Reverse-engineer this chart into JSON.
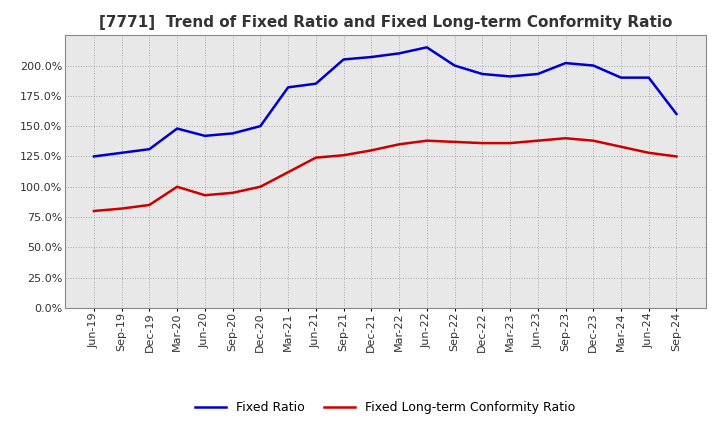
{
  "title": "[7771]  Trend of Fixed Ratio and Fixed Long-term Conformity Ratio",
  "x_labels": [
    "Jun-19",
    "Sep-19",
    "Dec-19",
    "Mar-20",
    "Jun-20",
    "Sep-20",
    "Dec-20",
    "Mar-21",
    "Jun-21",
    "Sep-21",
    "Dec-21",
    "Mar-22",
    "Jun-22",
    "Sep-22",
    "Dec-22",
    "Mar-23",
    "Jun-23",
    "Sep-23",
    "Dec-23",
    "Mar-24",
    "Jun-24",
    "Sep-24"
  ],
  "fixed_ratio": [
    125.0,
    128.0,
    131.0,
    148.0,
    142.0,
    144.0,
    150.0,
    182.0,
    185.0,
    205.0,
    207.0,
    210.0,
    215.0,
    200.0,
    193.0,
    191.0,
    193.0,
    202.0,
    200.0,
    190.0,
    190.0,
    160.0
  ],
  "fixed_lt_ratio": [
    80.0,
    82.0,
    85.0,
    100.0,
    93.0,
    95.0,
    100.0,
    112.0,
    124.0,
    126.0,
    130.0,
    135.0,
    138.0,
    137.0,
    136.0,
    136.0,
    138.0,
    140.0,
    138.0,
    133.0,
    128.0,
    125.0
  ],
  "blue_color": "#0000cc",
  "red_color": "#cc0000",
  "background_color": "#ffffff",
  "plot_bg_color": "#e8e8e8",
  "grid_color": "#aaaaaa",
  "ylim": [
    0.0,
    225.0
  ],
  "yticks": [
    0.0,
    25.0,
    50.0,
    75.0,
    100.0,
    125.0,
    150.0,
    175.0,
    200.0
  ],
  "legend_fixed_ratio": "Fixed Ratio",
  "legend_fixed_lt_ratio": "Fixed Long-term Conformity Ratio",
  "title_fontsize": 11,
  "axis_fontsize": 8,
  "legend_fontsize": 9
}
